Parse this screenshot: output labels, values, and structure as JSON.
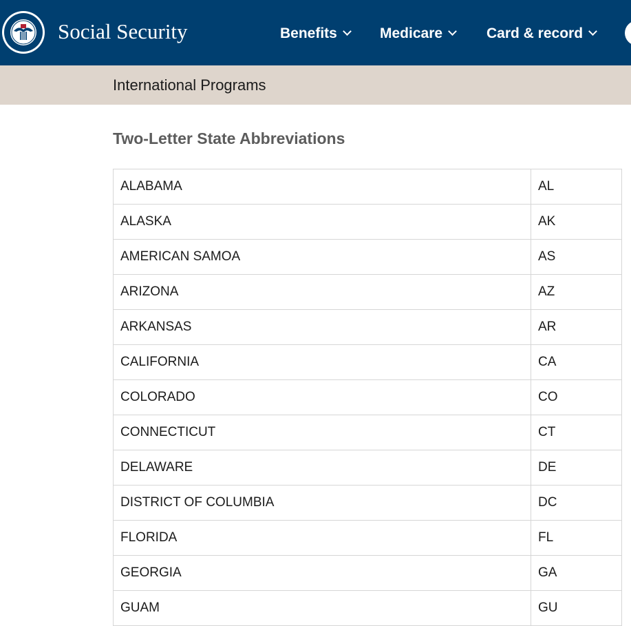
{
  "header": {
    "site_title": "Social Security",
    "logo_text": "SOCIAL SECURITY ADMINISTRATION USA",
    "nav": [
      {
        "label": "Benefits"
      },
      {
        "label": "Medicare"
      },
      {
        "label": "Card & record"
      }
    ],
    "colors": {
      "background": "#003f70",
      "text": "#ffffff"
    }
  },
  "subbar": {
    "title": "International Programs",
    "background": "#ded5cc"
  },
  "page": {
    "heading": "Two-Letter State Abbreviations"
  },
  "table": {
    "rows": [
      {
        "state": "ALABAMA",
        "abbr": "AL"
      },
      {
        "state": "ALASKA",
        "abbr": "AK"
      },
      {
        "state": "AMERICAN SAMOA",
        "abbr": "AS"
      },
      {
        "state": "ARIZONA",
        "abbr": "AZ"
      },
      {
        "state": "ARKANSAS",
        "abbr": "AR"
      },
      {
        "state": "CALIFORNIA",
        "abbr": "CA"
      },
      {
        "state": "COLORADO",
        "abbr": "CO"
      },
      {
        "state": "CONNECTICUT",
        "abbr": "CT"
      },
      {
        "state": "DELAWARE",
        "abbr": "DE"
      },
      {
        "state": "DISTRICT OF COLUMBIA",
        "abbr": "DC"
      },
      {
        "state": "FLORIDA",
        "abbr": "FL"
      },
      {
        "state": "GEORGIA",
        "abbr": "GA"
      },
      {
        "state": "GUAM",
        "abbr": "GU"
      }
    ]
  }
}
